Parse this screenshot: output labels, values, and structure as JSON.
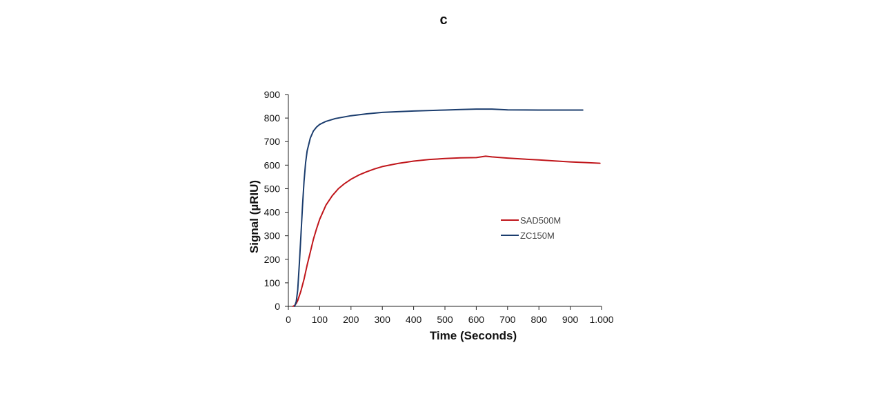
{
  "panel_label": "c",
  "chart_data": {
    "type": "line",
    "title": "",
    "xlabel": "Time (Seconds)",
    "ylabel": "Signal (µRIU)",
    "xlim": [
      0,
      1000
    ],
    "ylim": [
      0,
      900
    ],
    "x_ticks": [
      0,
      100,
      200,
      300,
      400,
      500,
      600,
      700,
      800,
      900,
      1000
    ],
    "x_tick_labels": [
      "0",
      "100",
      "200",
      "300",
      "400",
      "500",
      "600",
      "700",
      "800",
      "900",
      "1.000"
    ],
    "y_ticks": [
      0,
      100,
      200,
      300,
      400,
      500,
      600,
      700,
      800,
      900
    ],
    "y_tick_labels": [
      "0",
      "100",
      "200",
      "300",
      "400",
      "500",
      "600",
      "700",
      "800",
      "900"
    ],
    "grid": false,
    "legend_position": "center-right",
    "series": [
      {
        "name": "SAD500M",
        "color": "#c0161b",
        "x": [
          15,
          20,
          25,
          30,
          40,
          50,
          60,
          70,
          80,
          90,
          100,
          120,
          140,
          160,
          180,
          200,
          225,
          250,
          275,
          300,
          350,
          400,
          450,
          500,
          550,
          600,
          630,
          650,
          700,
          750,
          800,
          850,
          900,
          950,
          995
        ],
        "y": [
          0,
          4,
          12,
          25,
          65,
          115,
          175,
          230,
          285,
          330,
          370,
          430,
          470,
          500,
          522,
          540,
          558,
          572,
          584,
          594,
          607,
          617,
          624,
          628,
          631,
          632,
          638,
          635,
          630,
          626,
          622,
          618,
          614,
          611,
          608
        ]
      },
      {
        "name": "ZC150M",
        "color": "#1b3d6e",
        "x": [
          20,
          25,
          30,
          35,
          40,
          45,
          50,
          55,
          60,
          70,
          80,
          90,
          100,
          120,
          150,
          200,
          250,
          300,
          400,
          500,
          550,
          600,
          650,
          700,
          800,
          900,
          940
        ],
        "y": [
          0,
          20,
          70,
          180,
          300,
          420,
          530,
          610,
          660,
          715,
          745,
          762,
          773,
          786,
          798,
          810,
          818,
          824,
          830,
          834,
          836,
          838,
          838,
          835,
          834,
          834,
          834
        ]
      }
    ]
  }
}
